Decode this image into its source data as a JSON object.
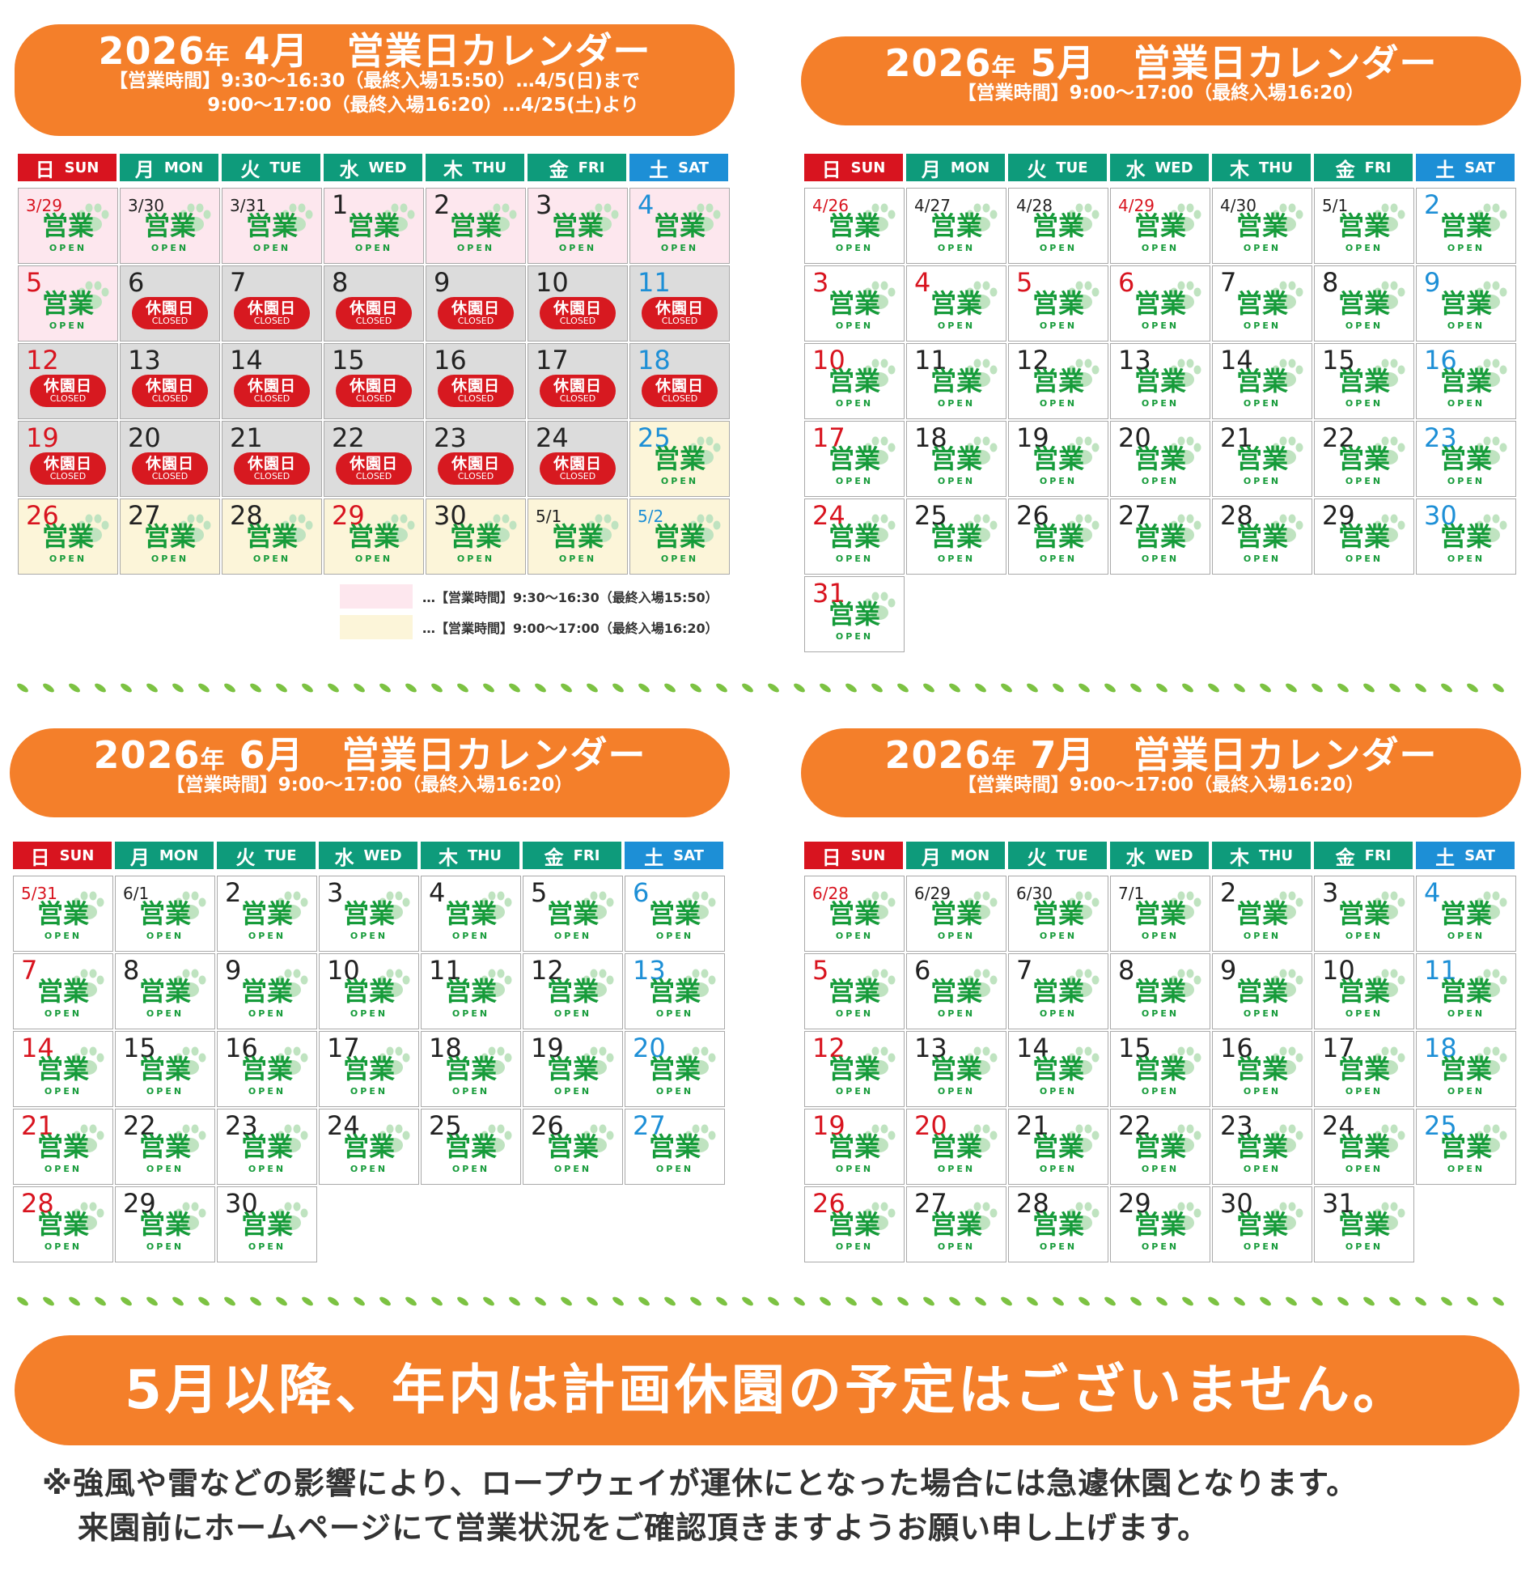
{
  "colors": {
    "orange": "#f47f2a",
    "sun": "#d8141f",
    "sat": "#1d8fd6",
    "weekday": "#0e9b7b",
    "green": "#169b3a",
    "closed": "#d71920",
    "pink": "#fde7ee",
    "yellow": "#fcf5d9",
    "gray": "#dcdcdc"
  },
  "weekdays": [
    {
      "ja": "日",
      "en": "SUN",
      "kind": "sun"
    },
    {
      "ja": "月",
      "en": "MON",
      "kind": "wd"
    },
    {
      "ja": "火",
      "en": "TUE",
      "kind": "wd"
    },
    {
      "ja": "水",
      "en": "WED",
      "kind": "wd"
    },
    {
      "ja": "木",
      "en": "THU",
      "kind": "wd"
    },
    {
      "ja": "金",
      "en": "FRI",
      "kind": "wd"
    },
    {
      "ja": "土",
      "en": "SAT",
      "kind": "sat"
    }
  ],
  "labels": {
    "open_ja": "営業",
    "open_en": "OPEN",
    "closed_ja": "休園日",
    "closed_en": "CLOSED",
    "nen": "年"
  },
  "calendars": [
    {
      "year": "2026",
      "month": "4月",
      "title": "営業日カレンダー",
      "hours": [
        "【営業時間】9:30〜16:30（最終入場15:50）…4/5(日)まで",
        "9:00〜17:00（最終入場16:20）…4/25(土)より"
      ],
      "days": [
        {
          "label": "3/29",
          "status": "open",
          "bg": "pink",
          "color": "sun"
        },
        {
          "label": "3/30",
          "status": "open",
          "bg": "pink",
          "color": "wd"
        },
        {
          "label": "3/31",
          "status": "open",
          "bg": "pink",
          "color": "wd"
        },
        {
          "label": "1",
          "status": "open",
          "bg": "pink",
          "color": "wd"
        },
        {
          "label": "2",
          "status": "open",
          "bg": "pink",
          "color": "wd"
        },
        {
          "label": "3",
          "status": "open",
          "bg": "pink",
          "color": "wd"
        },
        {
          "label": "4",
          "status": "open",
          "bg": "pink",
          "color": "sat"
        },
        {
          "label": "5",
          "status": "open",
          "bg": "pink",
          "color": "sun"
        },
        {
          "label": "6",
          "status": "closed",
          "bg": "gray",
          "color": "wd"
        },
        {
          "label": "7",
          "status": "closed",
          "bg": "gray",
          "color": "wd"
        },
        {
          "label": "8",
          "status": "closed",
          "bg": "gray",
          "color": "wd"
        },
        {
          "label": "9",
          "status": "closed",
          "bg": "gray",
          "color": "wd"
        },
        {
          "label": "10",
          "status": "closed",
          "bg": "gray",
          "color": "wd"
        },
        {
          "label": "11",
          "status": "closed",
          "bg": "gray",
          "color": "sat"
        },
        {
          "label": "12",
          "status": "closed",
          "bg": "gray",
          "color": "sun"
        },
        {
          "label": "13",
          "status": "closed",
          "bg": "gray",
          "color": "wd"
        },
        {
          "label": "14",
          "status": "closed",
          "bg": "gray",
          "color": "wd"
        },
        {
          "label": "15",
          "status": "closed",
          "bg": "gray",
          "color": "wd"
        },
        {
          "label": "16",
          "status": "closed",
          "bg": "gray",
          "color": "wd"
        },
        {
          "label": "17",
          "status": "closed",
          "bg": "gray",
          "color": "wd"
        },
        {
          "label": "18",
          "status": "closed",
          "bg": "gray",
          "color": "sat"
        },
        {
          "label": "19",
          "status": "closed",
          "bg": "gray",
          "color": "sun"
        },
        {
          "label": "20",
          "status": "closed",
          "bg": "gray",
          "color": "wd"
        },
        {
          "label": "21",
          "status": "closed",
          "bg": "gray",
          "color": "wd"
        },
        {
          "label": "22",
          "status": "closed",
          "bg": "gray",
          "color": "wd"
        },
        {
          "label": "23",
          "status": "closed",
          "bg": "gray",
          "color": "wd"
        },
        {
          "label": "24",
          "status": "closed",
          "bg": "gray",
          "color": "wd"
        },
        {
          "label": "25",
          "status": "open",
          "bg": "yellow",
          "color": "sat"
        },
        {
          "label": "26",
          "status": "open",
          "bg": "yellow",
          "color": "sun"
        },
        {
          "label": "27",
          "status": "open",
          "bg": "yellow",
          "color": "wd"
        },
        {
          "label": "28",
          "status": "open",
          "bg": "yellow",
          "color": "wd"
        },
        {
          "label": "29",
          "status": "open",
          "bg": "yellow",
          "color": "sun"
        },
        {
          "label": "30",
          "status": "open",
          "bg": "yellow",
          "color": "wd"
        },
        {
          "label": "5/1",
          "status": "open",
          "bg": "yellow",
          "color": "wd"
        },
        {
          "label": "5/2",
          "status": "open",
          "bg": "yellow",
          "color": "sat"
        }
      ]
    },
    {
      "year": "2026",
      "month": "5月",
      "title": "営業日カレンダー",
      "hours": [
        "【営業時間】9:00〜17:00（最終入場16:20）"
      ],
      "days": [
        {
          "label": "4/26",
          "status": "open",
          "color": "sun"
        },
        {
          "label": "4/27",
          "status": "open",
          "color": "wd"
        },
        {
          "label": "4/28",
          "status": "open",
          "color": "wd"
        },
        {
          "label": "4/29",
          "status": "open",
          "color": "sun"
        },
        {
          "label": "4/30",
          "status": "open",
          "color": "wd"
        },
        {
          "label": "5/1",
          "status": "open",
          "color": "wd"
        },
        {
          "label": "2",
          "status": "open",
          "color": "sat"
        },
        {
          "label": "3",
          "status": "open",
          "color": "sun"
        },
        {
          "label": "4",
          "status": "open",
          "color": "sun"
        },
        {
          "label": "5",
          "status": "open",
          "color": "sun"
        },
        {
          "label": "6",
          "status": "open",
          "color": "sun"
        },
        {
          "label": "7",
          "status": "open",
          "color": "wd"
        },
        {
          "label": "8",
          "status": "open",
          "color": "wd"
        },
        {
          "label": "9",
          "status": "open",
          "color": "sat"
        },
        {
          "label": "10",
          "status": "open",
          "color": "sun"
        },
        {
          "label": "11",
          "status": "open",
          "color": "wd"
        },
        {
          "label": "12",
          "status": "open",
          "color": "wd"
        },
        {
          "label": "13",
          "status": "open",
          "color": "wd"
        },
        {
          "label": "14",
          "status": "open",
          "color": "wd"
        },
        {
          "label": "15",
          "status": "open",
          "color": "wd"
        },
        {
          "label": "16",
          "status": "open",
          "color": "sat"
        },
        {
          "label": "17",
          "status": "open",
          "color": "sun"
        },
        {
          "label": "18",
          "status": "open",
          "color": "wd"
        },
        {
          "label": "19",
          "status": "open",
          "color": "wd"
        },
        {
          "label": "20",
          "status": "open",
          "color": "wd"
        },
        {
          "label": "21",
          "status": "open",
          "color": "wd"
        },
        {
          "label": "22",
          "status": "open",
          "color": "wd"
        },
        {
          "label": "23",
          "status": "open",
          "color": "sat"
        },
        {
          "label": "24",
          "status": "open",
          "color": "sun"
        },
        {
          "label": "25",
          "status": "open",
          "color": "wd"
        },
        {
          "label": "26",
          "status": "open",
          "color": "wd"
        },
        {
          "label": "27",
          "status": "open",
          "color": "wd"
        },
        {
          "label": "28",
          "status": "open",
          "color": "wd"
        },
        {
          "label": "29",
          "status": "open",
          "color": "wd"
        },
        {
          "label": "30",
          "status": "open",
          "color": "sat"
        },
        {
          "label": "31",
          "status": "open",
          "color": "sun"
        }
      ]
    },
    {
      "year": "2026",
      "month": "6月",
      "title": "営業日カレンダー",
      "hours": [
        "【営業時間】9:00〜17:00（最終入場16:20）"
      ],
      "days": [
        {
          "label": "5/31",
          "status": "open",
          "color": "sun"
        },
        {
          "label": "6/1",
          "status": "open",
          "color": "wd"
        },
        {
          "label": "2",
          "status": "open",
          "color": "wd"
        },
        {
          "label": "3",
          "status": "open",
          "color": "wd"
        },
        {
          "label": "4",
          "status": "open",
          "color": "wd"
        },
        {
          "label": "5",
          "status": "open",
          "color": "wd"
        },
        {
          "label": "6",
          "status": "open",
          "color": "sat"
        },
        {
          "label": "7",
          "status": "open",
          "color": "sun"
        },
        {
          "label": "8",
          "status": "open",
          "color": "wd"
        },
        {
          "label": "9",
          "status": "open",
          "color": "wd"
        },
        {
          "label": "10",
          "status": "open",
          "color": "wd"
        },
        {
          "label": "11",
          "status": "open",
          "color": "wd"
        },
        {
          "label": "12",
          "status": "open",
          "color": "wd"
        },
        {
          "label": "13",
          "status": "open",
          "color": "sat"
        },
        {
          "label": "14",
          "status": "open",
          "color": "sun"
        },
        {
          "label": "15",
          "status": "open",
          "color": "wd"
        },
        {
          "label": "16",
          "status": "open",
          "color": "wd"
        },
        {
          "label": "17",
          "status": "open",
          "color": "wd"
        },
        {
          "label": "18",
          "status": "open",
          "color": "wd"
        },
        {
          "label": "19",
          "status": "open",
          "color": "wd"
        },
        {
          "label": "20",
          "status": "open",
          "color": "sat"
        },
        {
          "label": "21",
          "status": "open",
          "color": "sun"
        },
        {
          "label": "22",
          "status": "open",
          "color": "wd"
        },
        {
          "label": "23",
          "status": "open",
          "color": "wd"
        },
        {
          "label": "24",
          "status": "open",
          "color": "wd"
        },
        {
          "label": "25",
          "status": "open",
          "color": "wd"
        },
        {
          "label": "26",
          "status": "open",
          "color": "wd"
        },
        {
          "label": "27",
          "status": "open",
          "color": "sat"
        },
        {
          "label": "28",
          "status": "open",
          "color": "sun"
        },
        {
          "label": "29",
          "status": "open",
          "color": "wd"
        },
        {
          "label": "30",
          "status": "open",
          "color": "wd"
        }
      ]
    },
    {
      "year": "2026",
      "month": "7月",
      "title": "営業日カレンダー",
      "hours": [
        "【営業時間】9:00〜17:00（最終入場16:20）"
      ],
      "days": [
        {
          "label": "6/28",
          "status": "open",
          "color": "sun"
        },
        {
          "label": "6/29",
          "status": "open",
          "color": "wd"
        },
        {
          "label": "6/30",
          "status": "open",
          "color": "wd"
        },
        {
          "label": "7/1",
          "status": "open",
          "color": "wd"
        },
        {
          "label": "2",
          "status": "open",
          "color": "wd"
        },
        {
          "label": "3",
          "status": "open",
          "color": "wd"
        },
        {
          "label": "4",
          "status": "open",
          "color": "sat"
        },
        {
          "label": "5",
          "status": "open",
          "color": "sun"
        },
        {
          "label": "6",
          "status": "open",
          "color": "wd"
        },
        {
          "label": "7",
          "status": "open",
          "color": "wd"
        },
        {
          "label": "8",
          "status": "open",
          "color": "wd"
        },
        {
          "label": "9",
          "status": "open",
          "color": "wd"
        },
        {
          "label": "10",
          "status": "open",
          "color": "wd"
        },
        {
          "label": "11",
          "status": "open",
          "color": "sat"
        },
        {
          "label": "12",
          "status": "open",
          "color": "sun"
        },
        {
          "label": "13",
          "status": "open",
          "color": "wd"
        },
        {
          "label": "14",
          "status": "open",
          "color": "wd"
        },
        {
          "label": "15",
          "status": "open",
          "color": "wd"
        },
        {
          "label": "16",
          "status": "open",
          "color": "wd"
        },
        {
          "label": "17",
          "status": "open",
          "color": "wd"
        },
        {
          "label": "18",
          "status": "open",
          "color": "sat"
        },
        {
          "label": "19",
          "status": "open",
          "color": "sun"
        },
        {
          "label": "20",
          "status": "open",
          "color": "sun"
        },
        {
          "label": "21",
          "status": "open",
          "color": "wd"
        },
        {
          "label": "22",
          "status": "open",
          "color": "wd"
        },
        {
          "label": "23",
          "status": "open",
          "color": "wd"
        },
        {
          "label": "24",
          "status": "open",
          "color": "wd"
        },
        {
          "label": "25",
          "status": "open",
          "color": "sat"
        },
        {
          "label": "26",
          "status": "open",
          "color": "sun"
        },
        {
          "label": "27",
          "status": "open",
          "color": "wd"
        },
        {
          "label": "28",
          "status": "open",
          "color": "wd"
        },
        {
          "label": "29",
          "status": "open",
          "color": "wd"
        },
        {
          "label": "30",
          "status": "open",
          "color": "wd"
        },
        {
          "label": "31",
          "status": "open",
          "color": "wd"
        }
      ]
    }
  ],
  "legend": [
    {
      "text": "…【営業時間】9:30〜16:30（最終入場15:50）",
      "color": "pink"
    },
    {
      "text": "…【営業時間】9:00〜17:00（最終入場16:20）",
      "color": "yellow"
    }
  ],
  "notice": "5月以降、年内は計画休園の予定はございません。",
  "footnote": [
    "※強風や雷などの影響により、ロープウェイが運休にとなった場合には急遽休園となります。",
    "来園前にホームページにて営業状況をご確認頂きますようお願い申し上げます。"
  ]
}
